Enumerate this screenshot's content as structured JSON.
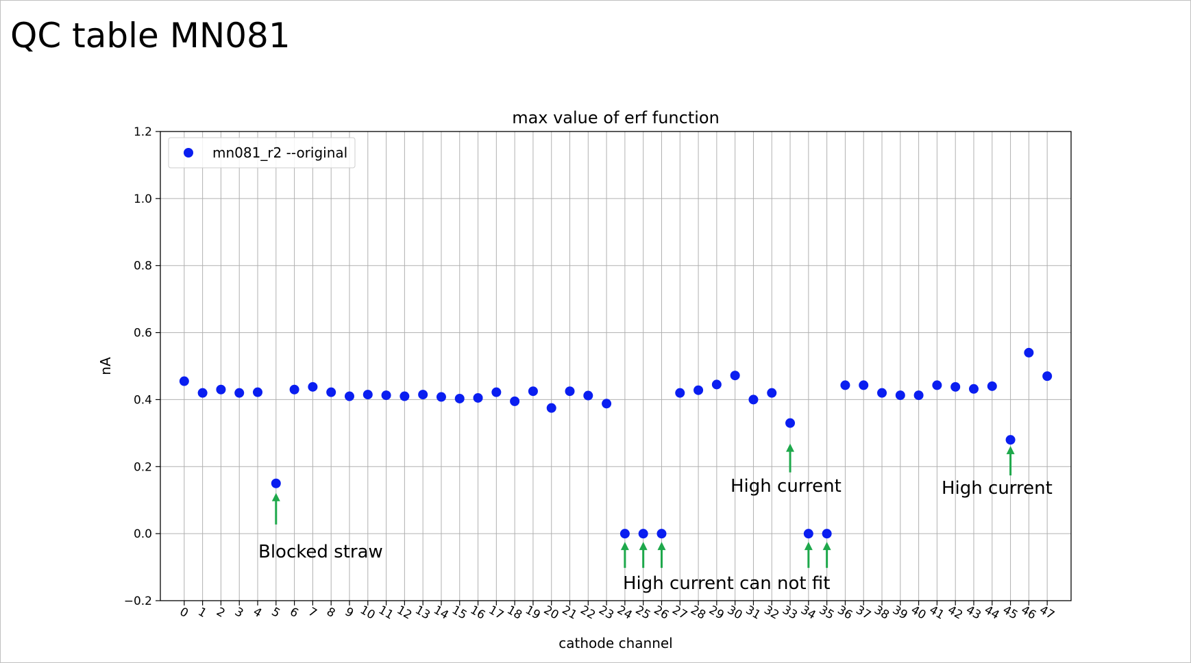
{
  "slide": {
    "title": "QC table MN081"
  },
  "colors": {
    "series": "#0a1ef0",
    "arrow": "#1ea84b",
    "grid": "#b0b0b0",
    "axis": "#000000"
  },
  "chart_data": {
    "type": "scatter",
    "title": "max value of erf function",
    "xlabel": "cathode channel",
    "ylabel": "nA",
    "ylim": [
      -0.2,
      1.2
    ],
    "yticks": [
      "−0.2",
      "0.0",
      "0.2",
      "0.4",
      "0.6",
      "0.8",
      "1.0",
      "1.2"
    ],
    "xlim": [
      -1.3,
      48.3
    ],
    "grid": true,
    "legend_position": "top-left",
    "series": [
      {
        "name": "mn081_r2 --original",
        "x": [
          0,
          1,
          2,
          3,
          4,
          5,
          6,
          7,
          8,
          9,
          10,
          11,
          12,
          13,
          14,
          15,
          16,
          17,
          18,
          19,
          20,
          21,
          22,
          23,
          24,
          25,
          26,
          27,
          28,
          29,
          30,
          31,
          32,
          33,
          34,
          35,
          36,
          37,
          38,
          39,
          40,
          41,
          42,
          43,
          44,
          45,
          46,
          47
        ],
        "y": [
          0.455,
          0.42,
          0.43,
          0.42,
          0.422,
          0.15,
          0.43,
          0.438,
          0.422,
          0.41,
          0.415,
          0.413,
          0.41,
          0.415,
          0.408,
          0.403,
          0.405,
          0.422,
          0.395,
          0.425,
          0.375,
          0.425,
          0.412,
          0.388,
          0.0,
          0.0,
          0.0,
          0.42,
          0.428,
          0.445,
          0.472,
          0.4,
          0.42,
          0.33,
          0.0,
          0.0,
          0.443,
          0.443,
          0.42,
          0.413,
          0.413,
          0.443,
          0.438,
          0.432,
          0.44,
          0.28,
          0.54,
          0.47
        ]
      }
    ],
    "annotations": [
      {
        "text": "Blocked straw",
        "arrows_at": [
          5
        ]
      },
      {
        "text": "High current can not fit",
        "arrows_at": [
          24,
          25,
          26,
          34,
          35
        ]
      },
      {
        "text": "High current",
        "arrows_at": [
          33
        ]
      },
      {
        "text": "High current",
        "arrows_at": [
          45
        ]
      }
    ]
  }
}
